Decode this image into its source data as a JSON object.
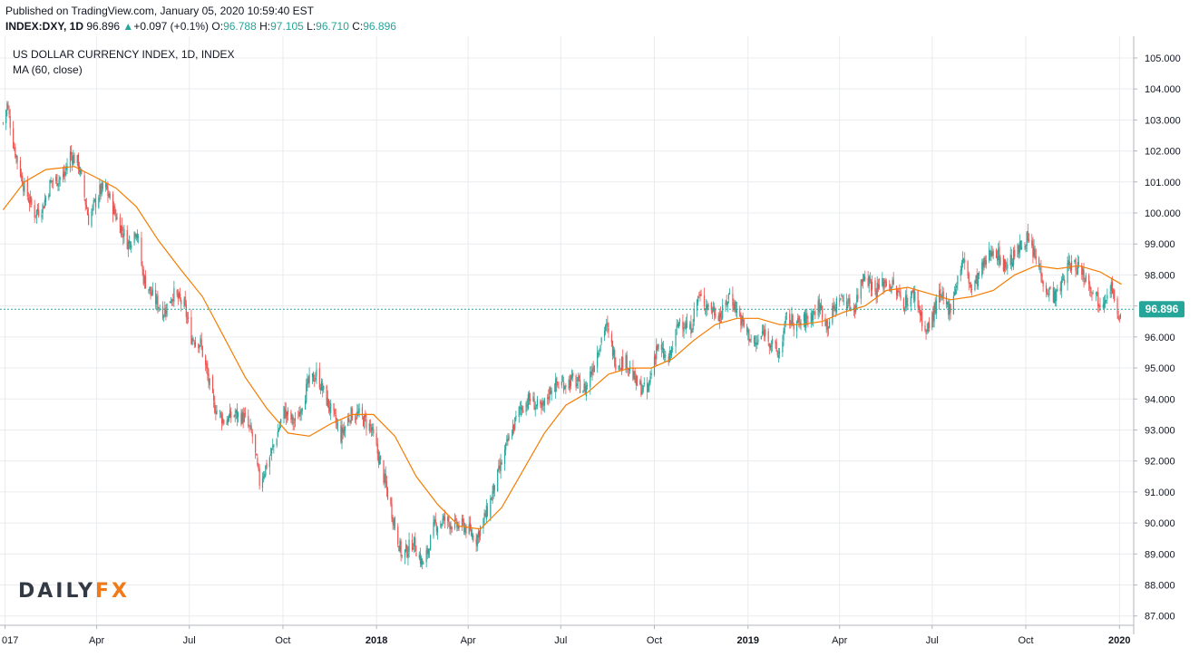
{
  "header": {
    "published": "Published on TradingView.com, January 05, 2020 10:59:40 EST",
    "symbol": "INDEX:DXY, 1D",
    "last": "96.896",
    "change_arrow": "▲",
    "change": "+0.097 (+0.1%)",
    "o_label": "O:",
    "o": "96.788",
    "h_label": "H:",
    "h": "97.105",
    "l_label": "L:",
    "l": "96.710",
    "c_label": "C:",
    "c": "96.896"
  },
  "legend": {
    "title": "US DOLLAR CURRENCY INDEX, 1D, INDEX",
    "indicator": "MA (60, close)"
  },
  "logo": {
    "part1": "DAILY",
    "part2": "FX"
  },
  "colors": {
    "up": "#26a69a",
    "down": "#ef5350",
    "ma": "#f57c00",
    "price_line": "#26a69a",
    "grid": "#e9ecef"
  },
  "chart_data": {
    "type": "line",
    "title": "US DOLLAR CURRENCY INDEX, 1D, INDEX",
    "ylim": [
      86.7,
      105.7
    ],
    "y_ticks": [
      "87.000",
      "88.000",
      "89.000",
      "90.000",
      "91.000",
      "92.000",
      "93.000",
      "94.000",
      "95.000",
      "96.000",
      "97.000",
      "98.000",
      "99.000",
      "100.000",
      "101.000",
      "102.000",
      "103.000",
      "104.000",
      "105.000"
    ],
    "x_ticks": [
      {
        "label": "017",
        "date": "2017-01-01"
      },
      {
        "label": "Apr",
        "date": "2017-04-01"
      },
      {
        "label": "Jul",
        "date": "2017-07-01"
      },
      {
        "label": "Oct",
        "date": "2017-10-01"
      },
      {
        "label": "2018",
        "date": "2018-01-01",
        "bold": true
      },
      {
        "label": "Apr",
        "date": "2018-04-01"
      },
      {
        "label": "Jul",
        "date": "2018-07-01"
      },
      {
        "label": "Oct",
        "date": "2018-10-01"
      },
      {
        "label": "2019",
        "date": "2019-01-01",
        "bold": true
      },
      {
        "label": "Apr",
        "date": "2019-04-01"
      },
      {
        "label": "Jul",
        "date": "2019-07-01"
      },
      {
        "label": "Oct",
        "date": "2019-10-01"
      },
      {
        "label": "2020",
        "date": "2020-01-01",
        "bold": true
      }
    ],
    "last_price": 96.896,
    "last_price_label": "96.896",
    "series": [
      {
        "name": "US DOLLAR CURRENCY INDEX",
        "kind": "close",
        "points": [
          [
            "2016-12-30",
            102.9
          ],
          [
            "2017-01-03",
            103.5
          ],
          [
            "2017-01-10",
            102.1
          ],
          [
            "2017-01-20",
            100.8
          ],
          [
            "2017-01-30",
            100.0
          ],
          [
            "2017-02-07",
            100.2
          ],
          [
            "2017-02-15",
            101.0
          ],
          [
            "2017-02-28",
            101.2
          ],
          [
            "2017-03-06",
            101.9
          ],
          [
            "2017-03-14",
            101.6
          ],
          [
            "2017-03-24",
            99.8
          ],
          [
            "2017-04-04",
            100.7
          ],
          [
            "2017-04-10",
            100.8
          ],
          [
            "2017-04-20",
            99.9
          ],
          [
            "2017-05-02",
            99.0
          ],
          [
            "2017-05-10",
            99.5
          ],
          [
            "2017-05-17",
            97.9
          ],
          [
            "2017-05-26",
            97.3
          ],
          [
            "2017-06-06",
            96.8
          ],
          [
            "2017-06-15",
            97.4
          ],
          [
            "2017-06-26",
            97.0
          ],
          [
            "2017-07-03",
            96.0
          ],
          [
            "2017-07-12",
            95.8
          ],
          [
            "2017-07-25",
            93.8
          ],
          [
            "2017-08-04",
            93.3
          ],
          [
            "2017-08-15",
            93.5
          ],
          [
            "2017-08-24",
            93.4
          ],
          [
            "2017-09-01",
            92.8
          ],
          [
            "2017-09-08",
            91.3
          ],
          [
            "2017-09-20",
            92.3
          ],
          [
            "2017-10-02",
            93.6
          ],
          [
            "2017-10-13",
            93.2
          ],
          [
            "2017-10-26",
            94.5
          ],
          [
            "2017-11-03",
            94.8
          ],
          [
            "2017-11-15",
            93.8
          ],
          [
            "2017-11-27",
            92.8
          ],
          [
            "2017-12-06",
            93.5
          ],
          [
            "2017-12-14",
            93.5
          ],
          [
            "2017-12-26",
            93.1
          ],
          [
            "2018-01-05",
            91.9
          ],
          [
            "2018-01-15",
            90.5
          ],
          [
            "2018-01-26",
            88.9
          ],
          [
            "2018-02-06",
            89.4
          ],
          [
            "2018-02-16",
            88.6
          ],
          [
            "2018-02-27",
            89.9
          ],
          [
            "2018-03-09",
            90.1
          ],
          [
            "2018-03-20",
            89.9
          ],
          [
            "2018-03-28",
            89.9
          ],
          [
            "2018-04-09",
            89.5
          ],
          [
            "2018-04-20",
            90.4
          ],
          [
            "2018-04-30",
            91.5
          ],
          [
            "2018-05-10",
            92.6
          ],
          [
            "2018-05-22",
            93.7
          ],
          [
            "2018-06-01",
            94.0
          ],
          [
            "2018-06-12",
            93.6
          ],
          [
            "2018-06-22",
            94.4
          ],
          [
            "2018-07-03",
            94.5
          ],
          [
            "2018-07-13",
            94.6
          ],
          [
            "2018-07-25",
            94.3
          ],
          [
            "2018-08-03",
            95.2
          ],
          [
            "2018-08-14",
            96.4
          ],
          [
            "2018-08-24",
            95.2
          ],
          [
            "2018-09-04",
            95.2
          ],
          [
            "2018-09-13",
            94.5
          ],
          [
            "2018-09-24",
            94.2
          ],
          [
            "2018-10-03",
            95.7
          ],
          [
            "2018-10-15",
            95.2
          ],
          [
            "2018-10-26",
            96.6
          ],
          [
            "2018-11-05",
            96.2
          ],
          [
            "2018-11-13",
            97.3
          ],
          [
            "2018-11-26",
            96.9
          ],
          [
            "2018-12-06",
            96.7
          ],
          [
            "2018-12-14",
            97.4
          ],
          [
            "2018-12-27",
            96.4
          ],
          [
            "2019-01-08",
            95.7
          ],
          [
            "2019-01-17",
            96.2
          ],
          [
            "2019-01-31",
            95.4
          ],
          [
            "2019-02-08",
            96.6
          ],
          [
            "2019-02-20",
            96.4
          ],
          [
            "2019-03-01",
            96.6
          ],
          [
            "2019-03-12",
            97.0
          ],
          [
            "2019-03-20",
            96.4
          ],
          [
            "2019-04-01",
            97.3
          ],
          [
            "2019-04-15",
            96.9
          ],
          [
            "2019-04-25",
            98.1
          ],
          [
            "2019-05-06",
            97.5
          ],
          [
            "2019-05-16",
            97.8
          ],
          [
            "2019-05-24",
            97.6
          ],
          [
            "2019-06-03",
            97.1
          ],
          [
            "2019-06-14",
            97.4
          ],
          [
            "2019-06-25",
            96.1
          ],
          [
            "2019-07-08",
            97.3
          ],
          [
            "2019-07-18",
            96.9
          ],
          [
            "2019-07-31",
            98.5
          ],
          [
            "2019-08-09",
            97.5
          ],
          [
            "2019-08-19",
            98.2
          ],
          [
            "2019-08-30",
            98.9
          ],
          [
            "2019-09-10",
            98.3
          ],
          [
            "2019-09-20",
            98.6
          ],
          [
            "2019-10-01",
            99.2
          ],
          [
            "2019-10-10",
            98.6
          ],
          [
            "2019-10-22",
            97.5
          ],
          [
            "2019-10-31",
            97.3
          ],
          [
            "2019-11-12",
            98.3
          ],
          [
            "2019-11-22",
            98.3
          ],
          [
            "2019-12-03",
            97.7
          ],
          [
            "2019-12-13",
            97.1
          ],
          [
            "2019-12-24",
            97.7
          ],
          [
            "2019-12-31",
            96.4
          ],
          [
            "2020-01-03",
            96.9
          ]
        ]
      },
      {
        "name": "MA (60, close)",
        "kind": "ma",
        "points": [
          [
            "2016-12-30",
            100.1
          ],
          [
            "2017-01-20",
            101.0
          ],
          [
            "2017-02-10",
            101.4
          ],
          [
            "2017-03-10",
            101.5
          ],
          [
            "2017-04-03",
            101.1
          ],
          [
            "2017-04-20",
            100.8
          ],
          [
            "2017-05-10",
            100.2
          ],
          [
            "2017-06-01",
            99.1
          ],
          [
            "2017-06-22",
            98.2
          ],
          [
            "2017-07-14",
            97.3
          ],
          [
            "2017-08-04",
            96.0
          ],
          [
            "2017-08-25",
            94.7
          ],
          [
            "2017-09-15",
            93.7
          ],
          [
            "2017-10-06",
            92.9
          ],
          [
            "2017-10-27",
            92.8
          ],
          [
            "2017-11-17",
            93.2
          ],
          [
            "2017-12-08",
            93.5
          ],
          [
            "2017-12-29",
            93.5
          ],
          [
            "2018-01-19",
            92.8
          ],
          [
            "2018-02-09",
            91.5
          ],
          [
            "2018-03-02",
            90.6
          ],
          [
            "2018-03-23",
            89.9
          ],
          [
            "2018-04-13",
            89.8
          ],
          [
            "2018-05-04",
            90.5
          ],
          [
            "2018-05-25",
            91.7
          ],
          [
            "2018-06-15",
            92.9
          ],
          [
            "2018-07-06",
            93.8
          ],
          [
            "2018-07-27",
            94.2
          ],
          [
            "2018-08-17",
            94.8
          ],
          [
            "2018-09-07",
            95.0
          ],
          [
            "2018-09-28",
            95.0
          ],
          [
            "2018-10-19",
            95.3
          ],
          [
            "2018-11-09",
            95.9
          ],
          [
            "2018-11-30",
            96.4
          ],
          [
            "2018-12-21",
            96.6
          ],
          [
            "2019-01-11",
            96.6
          ],
          [
            "2019-02-01",
            96.4
          ],
          [
            "2019-02-22",
            96.4
          ],
          [
            "2019-03-15",
            96.5
          ],
          [
            "2019-04-05",
            96.8
          ],
          [
            "2019-04-26",
            97.0
          ],
          [
            "2019-05-17",
            97.5
          ],
          [
            "2019-06-07",
            97.6
          ],
          [
            "2019-06-28",
            97.4
          ],
          [
            "2019-07-19",
            97.2
          ],
          [
            "2019-08-09",
            97.3
          ],
          [
            "2019-08-30",
            97.5
          ],
          [
            "2019-09-20",
            98.0
          ],
          [
            "2019-10-11",
            98.3
          ],
          [
            "2019-11-01",
            98.2
          ],
          [
            "2019-11-22",
            98.3
          ],
          [
            "2019-12-13",
            98.1
          ],
          [
            "2020-01-03",
            97.7
          ]
        ]
      }
    ]
  }
}
